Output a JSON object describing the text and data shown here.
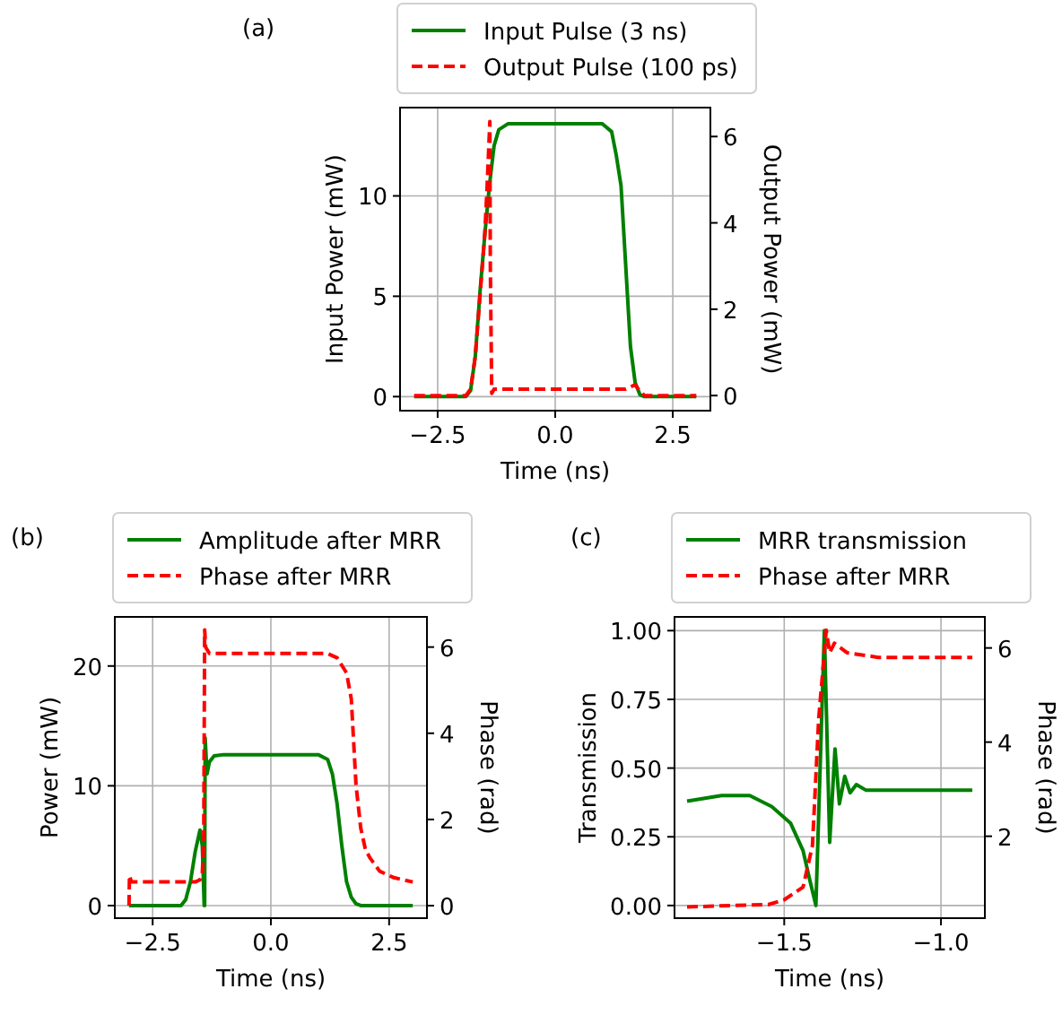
{
  "chart_data": [
    {
      "type": "line",
      "title": "(a)",
      "xlabel": "Time (ns)",
      "ylabel": "Input Power (mW)",
      "y2label": "Output Power (mW)",
      "legend": "top",
      "grid": true,
      "xlim": [
        -3.3,
        3.3
      ],
      "xticks": [
        {
          "value": -2.5,
          "label": "−2.5"
        },
        {
          "value": 0,
          "label": "0.0"
        },
        {
          "value": 2.5,
          "label": "2.5"
        }
      ],
      "ylim": [
        -0.7,
        14.4
      ],
      "yticks": [
        0,
        5,
        10
      ],
      "y2lim": [
        -0.35,
        6.67
      ],
      "y2ticks": [
        0,
        2,
        4,
        6
      ],
      "series": [
        {
          "name": "Input Pulse (3 ns)",
          "color": "#008000",
          "line_style": "solid",
          "x": [
            -3,
            -1.9,
            -1.8,
            -1.7,
            -1.6,
            -1.5,
            -1.4,
            -1.3,
            -1.2,
            -1.0,
            1.0,
            1.2,
            1.3,
            1.4,
            1.5,
            1.6,
            1.7,
            1.8,
            1.9,
            3
          ],
          "values": [
            0,
            0,
            0.3,
            2,
            5.2,
            8,
            10.5,
            12.5,
            13.3,
            13.6,
            13.6,
            13.2,
            12,
            10.5,
            6.5,
            2.5,
            0.7,
            0.1,
            0,
            0
          ]
        },
        {
          "name": "Output Pulse (100 ps)",
          "color": "#ff0000",
          "line_style": "dashed",
          "axis": "y2",
          "x": [
            -3,
            -1.9,
            -1.8,
            -1.7,
            -1.6,
            -1.5,
            -1.45,
            -1.39,
            -1.38,
            -1.35,
            -1.3,
            1.5,
            1.7,
            1.8,
            1.9,
            3
          ],
          "values": [
            0,
            0,
            0.15,
            0.9,
            2.3,
            3.7,
            4.8,
            6.35,
            3,
            0.05,
            0.15,
            0.15,
            0.25,
            0.1,
            0,
            0
          ]
        }
      ]
    },
    {
      "type": "line",
      "title": "(b)",
      "xlabel": "Time (ns)",
      "ylabel": "Power (mW)",
      "y2label": "Phase (rad)",
      "legend": "top",
      "grid": true,
      "xlim": [
        -3.3,
        3.3
      ],
      "xticks": [
        {
          "value": -2.5,
          "label": "−2.5"
        },
        {
          "value": 0,
          "label": "0.0"
        },
        {
          "value": 2.5,
          "label": "2.5"
        }
      ],
      "ylim": [
        -1.05,
        24.1
      ],
      "yticks": [
        0,
        10,
        20
      ],
      "y2lim": [
        -0.29,
        6.7
      ],
      "y2ticks": [
        0,
        2,
        4,
        6
      ],
      "series": [
        {
          "name": "Amplitude after MRR",
          "color": "#008000",
          "line_style": "solid",
          "x": [
            -3,
            -1.9,
            -1.8,
            -1.7,
            -1.6,
            -1.5,
            -1.45,
            -1.41,
            -1.4,
            -1.39,
            -1.35,
            -1.3,
            -1.2,
            -1.0,
            1.0,
            1.2,
            1.3,
            1.4,
            1.5,
            1.6,
            1.7,
            1.8,
            1.9,
            3
          ],
          "values": [
            0,
            0,
            0.5,
            2,
            4.5,
            6.3,
            5,
            0,
            0,
            14,
            11,
            12,
            12.5,
            12.6,
            12.6,
            12.2,
            11,
            8.5,
            5,
            2,
            0.7,
            0.15,
            0,
            0
          ]
        },
        {
          "name": "Phase after MRR",
          "color": "#ff0000",
          "line_style": "dashed",
          "axis": "y2",
          "x": [
            -3,
            -2.99,
            -2.95,
            -1.6,
            -1.5,
            -1.45,
            -1.42,
            -1.4,
            -1.38,
            -1.3,
            1.2,
            1.4,
            1.6,
            1.7,
            1.75,
            1.8,
            1.9,
            2.0,
            2.1,
            2.3,
            2.6,
            3
          ],
          "values": [
            0,
            0.7,
            0.55,
            0.55,
            0.6,
            0.75,
            1.5,
            6.4,
            6.0,
            5.85,
            5.85,
            5.75,
            5.4,
            4.8,
            3.8,
            2.8,
            1.8,
            1.3,
            1.1,
            0.8,
            0.65,
            0.55
          ]
        }
      ]
    },
    {
      "type": "line",
      "title": "(c)",
      "xlabel": "Time (ns)",
      "ylabel": "Transmission",
      "y2label": "Phase (rad)",
      "legend": "top",
      "grid": true,
      "xlim": [
        -1.85,
        -0.86
      ],
      "xticks": [
        {
          "value": -1.5,
          "label": "−1.5"
        },
        {
          "value": -1.0,
          "label": "−1.0"
        }
      ],
      "ylim": [
        -0.046,
        1.05
      ],
      "yticks": [
        {
          "value": 0,
          "label": "0.00"
        },
        {
          "value": 0.25,
          "label": "0.25"
        },
        {
          "value": 0.5,
          "label": "0.50"
        },
        {
          "value": 0.75,
          "label": "0.75"
        },
        {
          "value": 1,
          "label": "1.00"
        }
      ],
      "y2lim": [
        0.26,
        6.66
      ],
      "y2ticks": [
        2,
        4,
        6
      ],
      "series": [
        {
          "name": "MRR transmission",
          "color": "#008000",
          "line_style": "solid",
          "x": [
            -1.81,
            -1.7,
            -1.61,
            -1.54,
            -1.48,
            -1.44,
            -1.42,
            -1.399,
            -1.372,
            -1.355,
            -1.338,
            -1.324,
            -1.307,
            -1.29,
            -1.27,
            -1.24,
            -0.9
          ],
          "values": [
            0.38,
            0.4,
            0.4,
            0.36,
            0.3,
            0.2,
            0.1,
            0,
            1.0,
            0.23,
            0.57,
            0.37,
            0.47,
            0.41,
            0.44,
            0.42,
            0.42
          ]
        },
        {
          "name": "Phase after MRR",
          "color": "#ff0000",
          "line_style": "dashed",
          "axis": "y2",
          "x": [
            -1.81,
            -1.55,
            -1.5,
            -1.44,
            -1.41,
            -1.39,
            -1.366,
            -1.355,
            -1.34,
            -1.3,
            -1.2,
            -0.9
          ],
          "values": [
            0.5,
            0.55,
            0.65,
            0.92,
            1.8,
            4.5,
            6.38,
            5.9,
            6.1,
            5.9,
            5.8,
            5.8
          ]
        }
      ]
    }
  ]
}
